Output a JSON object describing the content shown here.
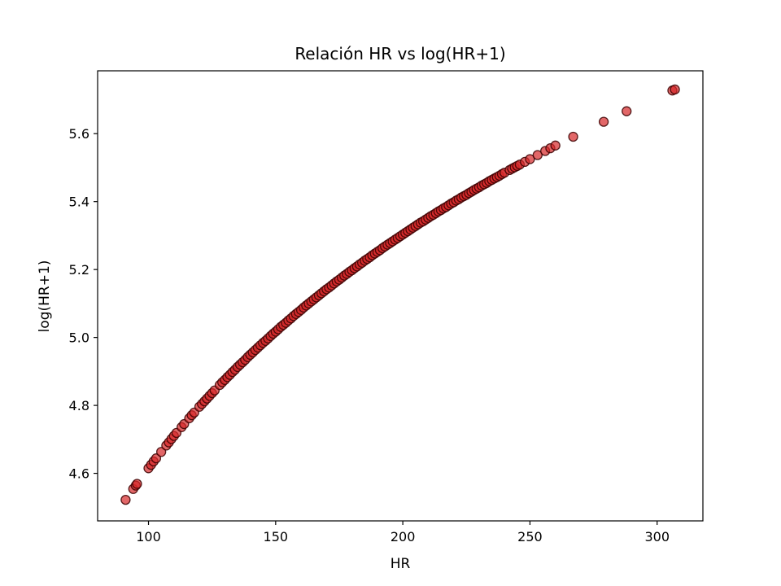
{
  "chart_data": {
    "type": "scatter",
    "title": "Relación HR vs log(HR+1)",
    "xlabel": "HR",
    "ylabel": "log(HR+1)",
    "xlim": [
      80,
      318
    ],
    "ylim": [
      4.46,
      5.785
    ],
    "xticks": [
      100,
      150,
      200,
      250,
      300
    ],
    "yticks": [
      4.6,
      4.8,
      5.0,
      5.2,
      5.4,
      5.6
    ],
    "xtick_labels": [
      "100",
      "150",
      "200",
      "250",
      "300"
    ],
    "ytick_labels": [
      "4.6",
      "4.8",
      "5.0",
      "5.2",
      "5.4",
      "5.6"
    ],
    "grid": false,
    "marker_color": "#d62728",
    "marker_edge": "#3a0000",
    "x": [
      91,
      94,
      95,
      95.5,
      100,
      101,
      102,
      103,
      105,
      107,
      108,
      109,
      110,
      111,
      113,
      114,
      116,
      117,
      118,
      120,
      121,
      122,
      123,
      124,
      125,
      126,
      128,
      129,
      130,
      131,
      132,
      133,
      134,
      135,
      136,
      137,
      138,
      139,
      140,
      141,
      142,
      143,
      144,
      145,
      146,
      147,
      148,
      149,
      150,
      151,
      152,
      153,
      154,
      155,
      156,
      157,
      158,
      159,
      160,
      161,
      162,
      163,
      164,
      165,
      166,
      167,
      168,
      169,
      170,
      171,
      172,
      173,
      174,
      175,
      176,
      177,
      178,
      179,
      180,
      181,
      182,
      183,
      184,
      185,
      186,
      187,
      188,
      189,
      190,
      191,
      192,
      193,
      194,
      195,
      196,
      197,
      198,
      199,
      200,
      201,
      202,
      203,
      204,
      205,
      206,
      207,
      208,
      209,
      210,
      211,
      212,
      213,
      214,
      215,
      216,
      217,
      218,
      219,
      220,
      221,
      222,
      223,
      224,
      225,
      226,
      227,
      228,
      229,
      230,
      231,
      232,
      233,
      234,
      235,
      236,
      237,
      238,
      239,
      240,
      242,
      243,
      244,
      245,
      246,
      248,
      250,
      253,
      256,
      258,
      260,
      267,
      279,
      288,
      306,
      307
    ],
    "y": [
      4.522,
      4.554,
      4.564,
      4.569,
      4.615,
      4.625,
      4.635,
      4.644,
      4.663,
      4.682,
      4.691,
      4.701,
      4.71,
      4.719,
      4.736,
      4.745,
      4.762,
      4.771,
      4.779,
      4.796,
      4.804,
      4.812,
      4.82,
      4.828,
      4.836,
      4.844,
      4.86,
      4.868,
      4.875,
      4.883,
      4.89,
      4.898,
      4.905,
      4.913,
      4.92,
      4.927,
      4.934,
      4.942,
      4.949,
      4.956,
      4.963,
      4.97,
      4.977,
      4.984,
      4.99,
      4.997,
      5.004,
      5.011,
      5.017,
      5.024,
      5.031,
      5.037,
      5.043,
      5.05,
      5.056,
      5.063,
      5.069,
      5.075,
      5.081,
      5.088,
      5.094,
      5.1,
      5.106,
      5.112,
      5.118,
      5.124,
      5.13,
      5.136,
      5.142,
      5.147,
      5.153,
      5.159,
      5.165,
      5.17,
      5.176,
      5.182,
      5.187,
      5.193,
      5.198,
      5.204,
      5.209,
      5.215,
      5.22,
      5.226,
      5.231,
      5.236,
      5.242,
      5.247,
      5.252,
      5.257,
      5.263,
      5.268,
      5.273,
      5.278,
      5.283,
      5.288,
      5.293,
      5.298,
      5.303,
      5.308,
      5.313,
      5.318,
      5.323,
      5.328,
      5.333,
      5.338,
      5.342,
      5.347,
      5.352,
      5.357,
      5.361,
      5.366,
      5.371,
      5.375,
      5.38,
      5.384,
      5.389,
      5.394,
      5.398,
      5.403,
      5.407,
      5.412,
      5.416,
      5.42,
      5.425,
      5.429,
      5.434,
      5.438,
      5.442,
      5.447,
      5.451,
      5.455,
      5.46,
      5.464,
      5.468,
      5.472,
      5.476,
      5.481,
      5.485,
      5.493,
      5.497,
      5.501,
      5.505,
      5.509,
      5.517,
      5.525,
      5.537,
      5.549,
      5.557,
      5.565,
      5.591,
      5.635,
      5.666,
      5.727,
      5.73
    ]
  }
}
